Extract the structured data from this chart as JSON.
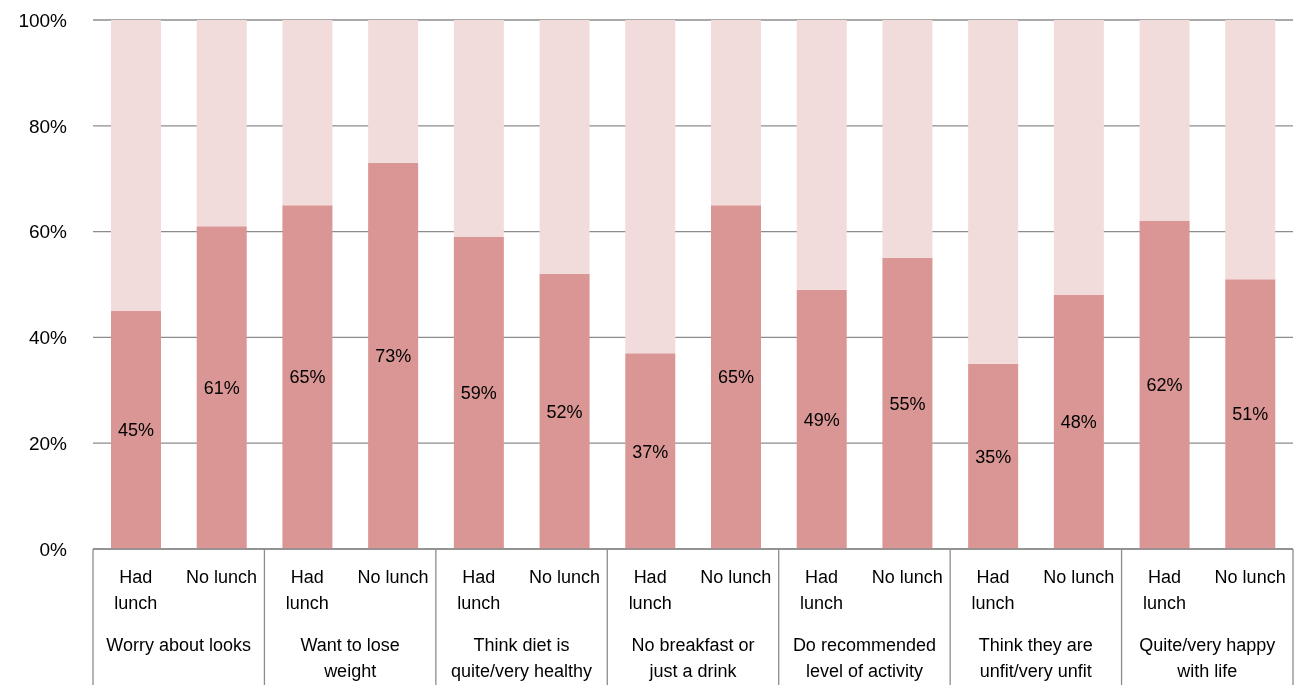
{
  "chart_data": {
    "type": "bar",
    "stacked": true,
    "categories": [
      "Had lunch",
      "No lunch",
      "Had lunch",
      "No lunch",
      "Had lunch",
      "No lunch",
      "Had lunch",
      "No lunch",
      "Had lunch",
      "No lunch",
      "Had lunch",
      "No lunch",
      "Had lunch",
      "No lunch"
    ],
    "annotations": [
      "Worry about looks",
      "Want to lose weight",
      "Think diet is quite/very healthy",
      "No breakfast or just a drink",
      "Do recommended level of activity",
      "Think they are unfit/very unfit",
      "Quite/very happy with life"
    ],
    "series": [
      {
        "color": "#d99694",
        "values": [
          45,
          61,
          65,
          73,
          59,
          52,
          37,
          65,
          49,
          55,
          35,
          48,
          62,
          51
        ],
        "value_labels": [
          "45%",
          "61%",
          "65%",
          "73%",
          "59%",
          "52%",
          "37%",
          "65%",
          "49%",
          "55%",
          "35%",
          "48%",
          "62%",
          "51%"
        ]
      },
      {
        "color": "#f2dcdb",
        "values": [
          55,
          39,
          35,
          27,
          41,
          48,
          63,
          35,
          51,
          45,
          65,
          52,
          38,
          49
        ]
      }
    ],
    "ylim": [
      0,
      100
    ],
    "yticks": [
      {
        "value": 0,
        "label": "0%"
      },
      {
        "value": 20,
        "label": "20%"
      },
      {
        "value": 40,
        "label": "40%"
      },
      {
        "value": 60,
        "label": "60%"
      },
      {
        "value": 80,
        "label": "80%"
      },
      {
        "value": 100,
        "label": "100%"
      }
    ],
    "grid": "y"
  }
}
